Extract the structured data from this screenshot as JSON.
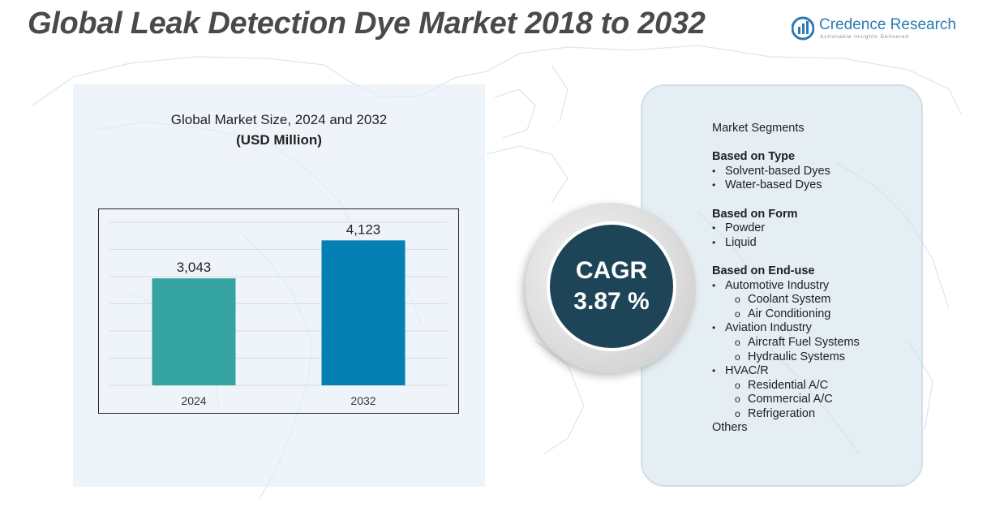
{
  "page": {
    "title": "Global Leak Detection Dye Market 2018 to 2032"
  },
  "brand": {
    "name": "Credence Research",
    "tagline": "Actionable Insights Delivered",
    "color": "#2b7bb6"
  },
  "chart_data": {
    "type": "bar",
    "title": "Global Market Size, 2024 and 2032",
    "unit": "(USD Million)",
    "categories": [
      "2024",
      "2032"
    ],
    "values": [
      3043,
      4123
    ],
    "value_labels": [
      "3,043",
      "4,123"
    ],
    "colors": [
      "#35a3a0",
      "#0580b2"
    ],
    "xlabel": "",
    "ylabel": "",
    "ylim": [
      0,
      4800
    ],
    "grid": true,
    "legend": "none"
  },
  "cagr": {
    "label": "CAGR",
    "value": "3.87 %",
    "color": "#1d4557"
  },
  "segments": {
    "heading": "Market Segments",
    "groups": [
      {
        "title": "Based on Type",
        "items": [
          {
            "label": "Solvent-based Dyes",
            "sub": []
          },
          {
            "label": "Water-based Dyes",
            "sub": []
          }
        ]
      },
      {
        "title": "Based on Form",
        "items": [
          {
            "label": "Powder",
            "sub": []
          },
          {
            "label": "Liquid",
            "sub": []
          }
        ]
      },
      {
        "title": "Based on End-use",
        "items": [
          {
            "label": "Automotive Industry",
            "sub": [
              "Coolant System",
              "Air Conditioning"
            ]
          },
          {
            "label": "Aviation Industry",
            "sub": [
              "Aircraft Fuel Systems",
              "Hydraulic Systems"
            ]
          },
          {
            "label": "HVAC/R",
            "sub": [
              "Residential A/C",
              "Commercial A/C",
              "Refrigeration"
            ]
          }
        ]
      }
    ],
    "footer": "Others",
    "bullet": "•",
    "sub_bullet": "o"
  }
}
